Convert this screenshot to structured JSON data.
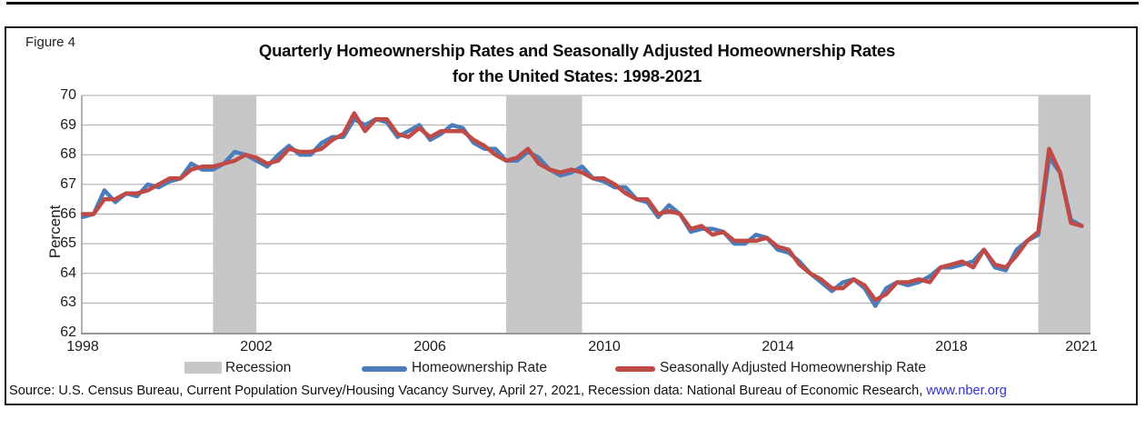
{
  "page": {
    "figure_label": "Figure 4",
    "title_line1": "Quarterly Homeownership Rates and Seasonally Adjusted Homeownership Rates",
    "title_line2": "for the United States: 1998-2021",
    "source_prefix": "Source: U.S. Census Bureau, Current Population Survey/Housing Vacancy Survey, April 27, 2021, Recession data: National Bureau of Economic Research, ",
    "source_link": "www.nber.org"
  },
  "legend": {
    "recession_label": "Recession"
  },
  "colors": {
    "homeownership_line": "#4c7dbb",
    "seasonal_line": "#bf4a46",
    "recession_band": "#c7c7c7",
    "gridline": "#a8a8a8",
    "axis": "#999999",
    "link": "#3333cc"
  },
  "chart_data": {
    "type": "line",
    "title": "Quarterly Homeownership Rates and Seasonally Adjusted Homeownership Rates for the United States: 1998-2021",
    "xlabel": "",
    "ylabel": "Percent",
    "ylim": [
      62,
      70
    ],
    "xlim": [
      1998,
      2021.25
    ],
    "grid": "horizontal",
    "legend_position": "bottom",
    "x_start_year": 1998,
    "x_step_years": 0.25,
    "x_unit": "quarter",
    "y_ticks": [
      70,
      69,
      68,
      67,
      66,
      65,
      64,
      63,
      62
    ],
    "x_tick_years": [
      1998,
      2002,
      2006,
      2010,
      2014,
      2018,
      2021
    ],
    "recession_bands": [
      [
        2001.0,
        2002.0
      ],
      [
        2007.75,
        2009.5
      ],
      [
        2020.0,
        2021.25
      ]
    ],
    "series": [
      {
        "name": "Homeownership Rate",
        "color": "#4c7dbb",
        "values": [
          65.9,
          66.0,
          66.8,
          66.4,
          66.7,
          66.6,
          67.0,
          66.9,
          67.1,
          67.2,
          67.7,
          67.5,
          67.5,
          67.7,
          68.1,
          68.0,
          67.8,
          67.6,
          68.0,
          68.3,
          68.0,
          68.0,
          68.4,
          68.6,
          68.6,
          69.2,
          69.0,
          69.2,
          69.1,
          68.6,
          68.8,
          69.0,
          68.5,
          68.7,
          69.0,
          68.9,
          68.4,
          68.2,
          68.2,
          67.8,
          67.8,
          68.1,
          67.9,
          67.5,
          67.3,
          67.4,
          67.6,
          67.2,
          67.1,
          66.9,
          66.9,
          66.5,
          66.4,
          65.9,
          66.3,
          66.0,
          65.4,
          65.5,
          65.5,
          65.4,
          65.0,
          65.0,
          65.3,
          65.2,
          64.8,
          64.7,
          64.4,
          64.0,
          63.7,
          63.4,
          63.7,
          63.8,
          63.5,
          62.9,
          63.5,
          63.7,
          63.6,
          63.7,
          63.9,
          64.2,
          64.2,
          64.3,
          64.4,
          64.8,
          64.2,
          64.1,
          64.8,
          65.1,
          65.3,
          67.9,
          67.4,
          65.8,
          65.6
        ]
      },
      {
        "name": "Seasonally Adjusted Homeownership Rate",
        "color": "#bf4a46",
        "values": [
          66.0,
          66.0,
          66.5,
          66.5,
          66.7,
          66.7,
          66.8,
          67.0,
          67.2,
          67.2,
          67.5,
          67.6,
          67.6,
          67.7,
          67.8,
          68.0,
          67.9,
          67.7,
          67.8,
          68.2,
          68.1,
          68.1,
          68.2,
          68.5,
          68.7,
          69.4,
          68.8,
          69.2,
          69.2,
          68.7,
          68.6,
          68.9,
          68.6,
          68.8,
          68.8,
          68.8,
          68.5,
          68.3,
          68.0,
          67.8,
          67.9,
          68.2,
          67.7,
          67.5,
          67.4,
          67.5,
          67.4,
          67.2,
          67.2,
          67.0,
          66.7,
          66.5,
          66.5,
          66.0,
          66.1,
          66.0,
          65.5,
          65.6,
          65.3,
          65.4,
          65.1,
          65.1,
          65.1,
          65.2,
          64.9,
          64.8,
          64.3,
          64.0,
          63.8,
          63.5,
          63.5,
          63.8,
          63.6,
          63.1,
          63.3,
          63.7,
          63.7,
          63.8,
          63.7,
          64.2,
          64.3,
          64.4,
          64.2,
          64.8,
          64.3,
          64.2,
          64.6,
          65.1,
          65.4,
          68.2,
          67.4,
          65.7,
          65.6
        ]
      }
    ]
  }
}
